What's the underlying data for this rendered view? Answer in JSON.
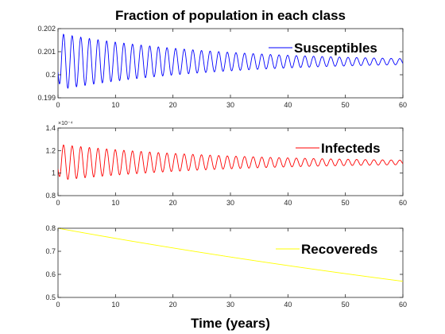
{
  "title": "Fraction of population in each class",
  "xlabel": "Time (years)",
  "chart_data": [
    {
      "type": "line",
      "title": "",
      "xlabel": "",
      "ylabel": "",
      "xlim": [
        0,
        60
      ],
      "ylim": [
        0.199,
        0.202
      ],
      "x_ticks": [
        "0",
        "10",
        "20",
        "30",
        "40",
        "50",
        "60"
      ],
      "y_ticks": [
        "0.199",
        "0.2",
        "0.201",
        "0.202"
      ],
      "y_exponent": "",
      "grid": false,
      "legend_position": "top-right",
      "series": [
        {
          "name": "Susceptibles",
          "color": "#0000ff",
          "model": {
            "type": "damped_oscillation",
            "mean": 0.20057,
            "amplitude_start": 0.00123,
            "amplitude_end": 0.00013,
            "period": 1.5,
            "x_start": 0,
            "x_end": 60
          }
        }
      ]
    },
    {
      "type": "line",
      "title": "",
      "xlabel": "",
      "ylabel": "",
      "xlim": [
        0,
        60
      ],
      "ylim": [
        0.8,
        1.4
      ],
      "x_ticks": [
        "0",
        "10",
        "20",
        "30",
        "40",
        "50",
        "60"
      ],
      "y_ticks": [
        "0.8",
        "1",
        "1.2",
        "1.4"
      ],
      "y_exponent": "×10⁻⁴",
      "grid": false,
      "legend_position": "top-right",
      "series": [
        {
          "name": "Infecteds",
          "color": "#ff0000",
          "model": {
            "type": "damped_oscillation",
            "mean": 1.095,
            "amplitude_start": 0.16,
            "amplitude_end": 0.02,
            "period": 1.5,
            "x_start": 0,
            "x_end": 60
          }
        }
      ]
    },
    {
      "type": "line",
      "title": "",
      "xlabel": "",
      "ylabel": "",
      "xlim": [
        0,
        60
      ],
      "ylim": [
        0.5,
        0.8
      ],
      "x_ticks": [
        "0",
        "10",
        "20",
        "30",
        "40",
        "50",
        "60"
      ],
      "y_ticks": [
        "0.5",
        "0.6",
        "0.7",
        "0.8"
      ],
      "y_exponent": "",
      "grid": false,
      "legend_position": "top-right",
      "series": [
        {
          "name": "Recovereds",
          "color": "#ffff00",
          "model": {
            "type": "exponential_decay",
            "start": 0.8,
            "end": 0.57,
            "x_start": 0,
            "x_end": 60
          }
        }
      ]
    }
  ]
}
